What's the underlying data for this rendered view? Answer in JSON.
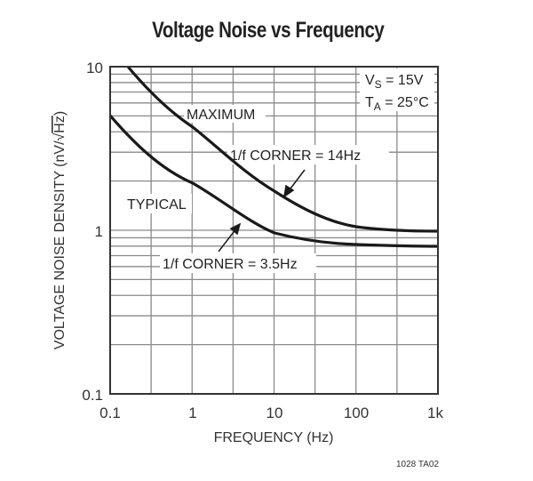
{
  "title": "Voltage Noise vs Frequency",
  "footer_code": "1028 TA02",
  "conditions": {
    "vs": "V",
    "vs_sub": "S",
    "vs_val": " = 15V",
    "ta": "T",
    "ta_sub": "A",
    "ta_val": " = 25°C"
  },
  "labels": {
    "maximum": "MAXIMUM",
    "typical": "TYPICAL",
    "corner_max": "1/f CORNER = 14Hz",
    "corner_typ": "1/f CORNER = 3.5Hz"
  },
  "axes": {
    "xlabel": "FREQUENCY (Hz)",
    "ylabel_main": "VOLTAGE NOISE DENSITY (nV/",
    "ylabel_sqrt": "Hz",
    "ylabel_end": ")",
    "xticks": [
      "0.1",
      "1",
      "10",
      "100",
      "1k"
    ],
    "yticks": [
      "10",
      "1",
      "0.1"
    ]
  },
  "colors": {
    "grid": "#888888",
    "curve": "#1a1a1a",
    "frame": "#333333"
  },
  "chart_data": {
    "type": "line",
    "title": "Voltage Noise vs Frequency",
    "xlabel": "FREQUENCY (Hz)",
    "ylabel": "VOLTAGE NOISE DENSITY (nV/√Hz)",
    "xscale": "log",
    "yscale": "log",
    "xlim": [
      0.1,
      1000
    ],
    "ylim": [
      0.1,
      10
    ],
    "grid": true,
    "x_tick_labels": [
      "0.1",
      "1",
      "10",
      "100",
      "1k"
    ],
    "y_tick_labels": [
      "0.1",
      "1",
      "10"
    ],
    "series": [
      {
        "name": "MAXIMUM",
        "x": [
          0.17,
          0.316,
          1,
          3.16,
          10,
          31.6,
          100,
          316,
          1000
        ],
        "values": [
          10,
          7.4,
          4.3,
          2.6,
          1.75,
          1.3,
          1.08,
          1.02,
          1.0
        ]
      },
      {
        "name": "TYPICAL",
        "x": [
          0.1,
          0.316,
          1,
          3.16,
          10,
          31.6,
          100,
          316,
          1000
        ],
        "values": [
          5.0,
          3.2,
          1.95,
          1.3,
          0.97,
          0.88,
          0.83,
          0.81,
          0.8
        ]
      }
    ],
    "annotations": [
      {
        "text": "1/f CORNER = 14Hz",
        "series": "MAXIMUM",
        "x": 14
      },
      {
        "text": "1/f CORNER = 3.5Hz",
        "series": "TYPICAL",
        "x": 3.5
      },
      {
        "text": "VS = 15V"
      },
      {
        "text": "TA = 25°C"
      }
    ]
  }
}
